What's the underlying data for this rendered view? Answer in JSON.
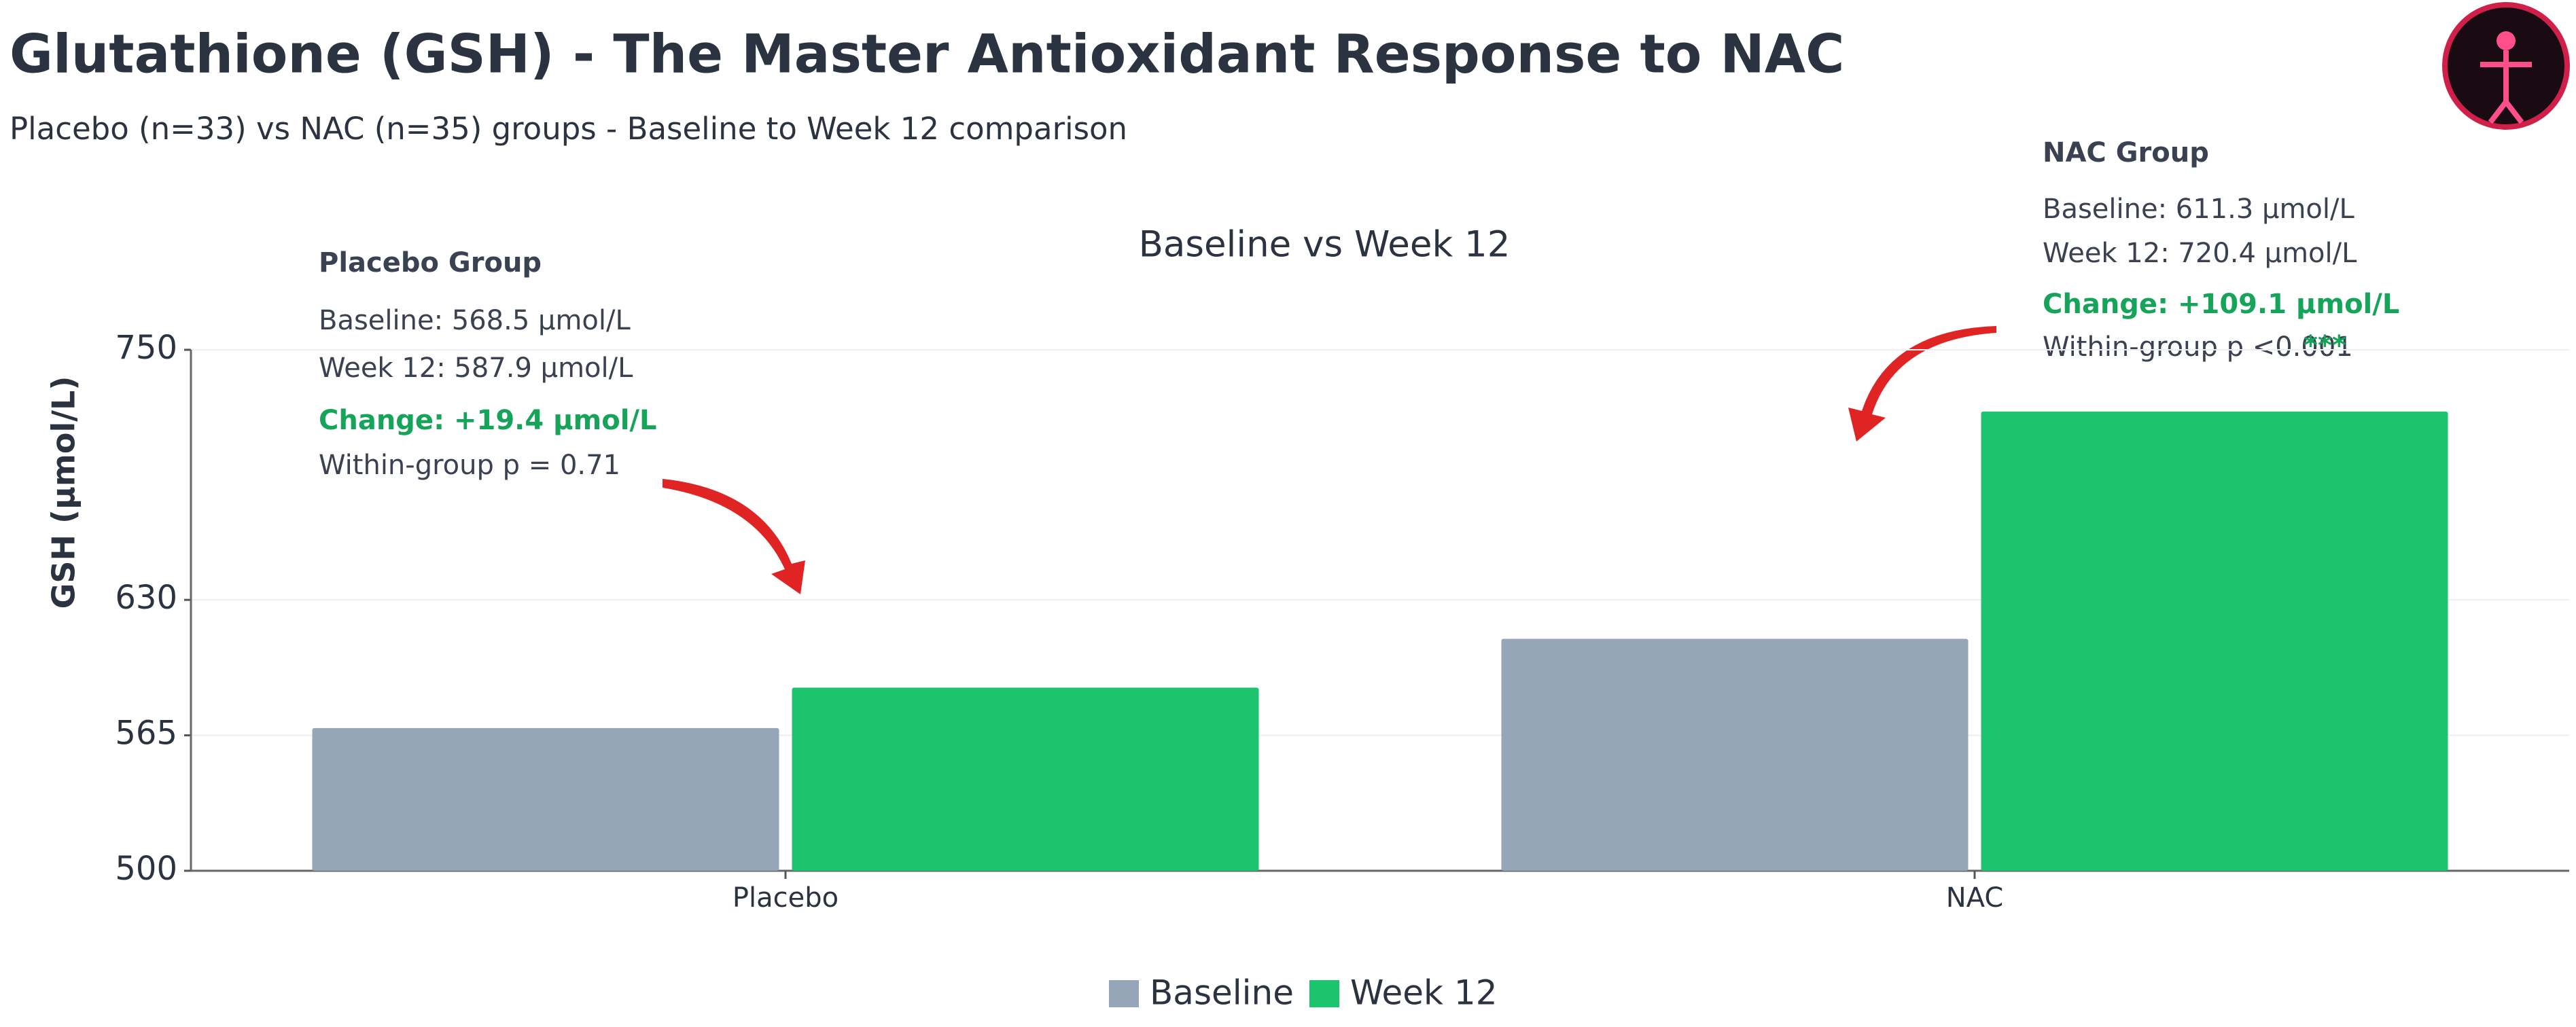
{
  "title": "Glutathione (GSH) - The Master Antioxidant Response to NAC",
  "subtitle": "Placebo (n=33) vs NAC (n=35) groups - Baseline to Week 12 comparison",
  "chart_data": {
    "type": "bar",
    "title": "Baseline vs Week 12",
    "y_label": "GSH (μmol/L)",
    "categories": [
      "Placebo",
      "NAC"
    ],
    "series": [
      {
        "name": "Baseline",
        "color": "#97a5b9",
        "values": [
          568.5,
          611.3
        ]
      },
      {
        "name": "Week 12",
        "color": "#1dc46e",
        "values": [
          587.9,
          720.4
        ]
      }
    ],
    "ylim": [
      500,
      750
    ],
    "yticks": [
      500,
      565,
      630,
      750
    ],
    "grid": true,
    "legend": "bottom",
    "annotations": [
      {
        "title": "Placebo Group",
        "baseline": "Baseline: 568.5 μmol/L",
        "week12": "Week 12: 587.9 μmol/L",
        "change": "Change: +19.4 μmol/L",
        "p_value": "Within-group p = 0.71"
      },
      {
        "title": "NAC Group",
        "baseline": "Baseline: 611.3 μmol/L",
        "week12": "Week 12: 720.4 μmol/L",
        "change": "Change: +109.1 μmol/L",
        "p_value": "Within-group p <0.001",
        "significance": "***"
      }
    ]
  }
}
